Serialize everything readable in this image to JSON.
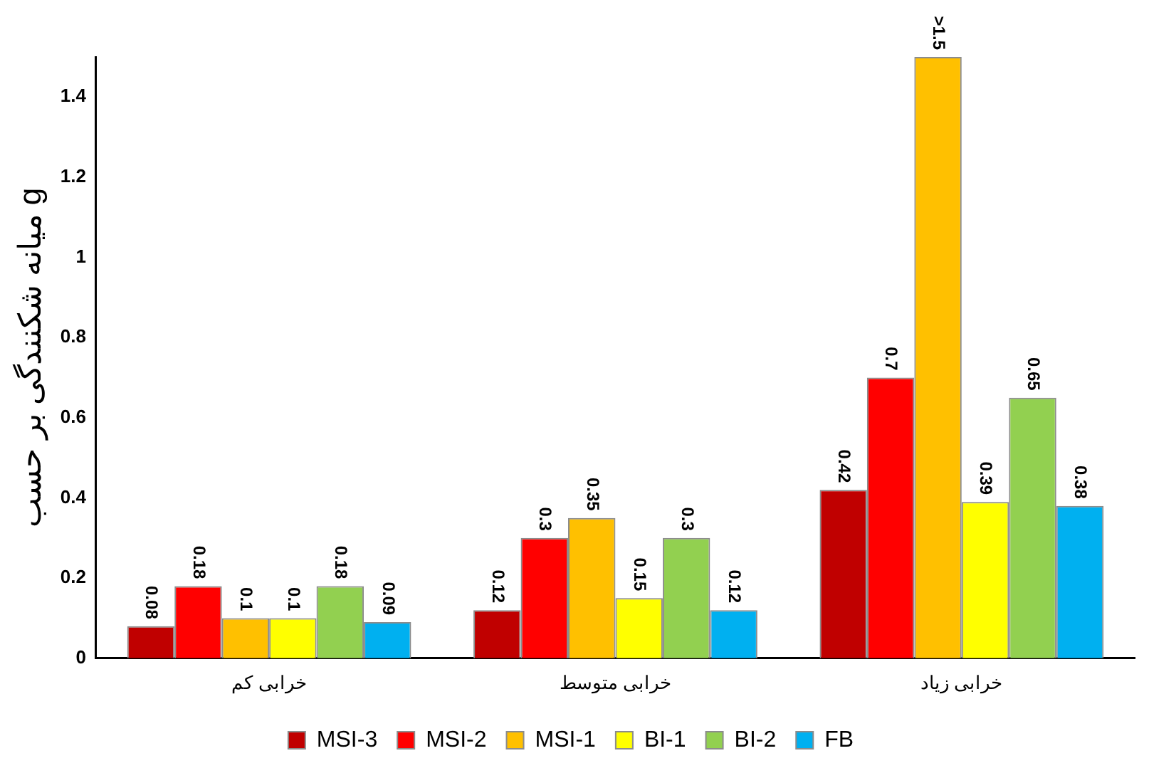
{
  "chart_data": {
    "type": "bar",
    "ylabel": "میانه شکنندگی بر حسب g",
    "categories": [
      "خرابی کم",
      "خرابی متوسط",
      "خرابی زیاد"
    ],
    "series": [
      {
        "name": "MSI-3",
        "color": "#c00000",
        "values": [
          0.08,
          0.12,
          0.42
        ],
        "value_labels": [
          "0.08",
          "0.12",
          "0.42"
        ]
      },
      {
        "name": "MSI-2",
        "color": "#ff0000",
        "values": [
          0.18,
          0.3,
          0.7
        ],
        "value_labels": [
          "0.18",
          "0.3",
          "0.7"
        ]
      },
      {
        "name": "MSI-1",
        "color": "#ffc000",
        "values": [
          0.1,
          0.35,
          1.5
        ],
        "value_labels": [
          "0.1",
          "0.35",
          ">1.5"
        ]
      },
      {
        "name": "BI-1",
        "color": "#ffff00",
        "values": [
          0.1,
          0.15,
          0.39
        ],
        "value_labels": [
          "0.1",
          "0.15",
          "0.39"
        ]
      },
      {
        "name": "BI-2",
        "color": "#92d050",
        "values": [
          0.18,
          0.3,
          0.65
        ],
        "value_labels": [
          "0.18",
          "0.3",
          "0.65"
        ]
      },
      {
        "name": "FB",
        "color": "#00b0f0",
        "values": [
          0.09,
          0.12,
          0.38
        ],
        "value_labels": [
          "0.09",
          "0.12",
          "0.38"
        ]
      }
    ],
    "ylim": [
      0,
      1.5
    ],
    "yticks": [
      0,
      0.2,
      0.4,
      0.6,
      0.8,
      1,
      1.2,
      1.4
    ],
    "grid": false,
    "legend": "bottom"
  }
}
